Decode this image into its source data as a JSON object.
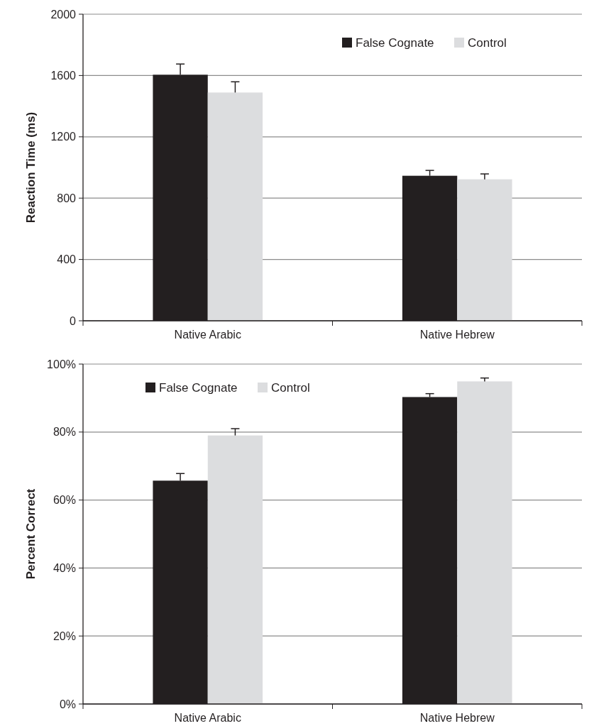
{
  "chart_data": [
    {
      "type": "bar",
      "ylabel": "Reaction Time (ms)",
      "categories": [
        "Native Arabic",
        "Native Hebrew"
      ],
      "series": [
        {
          "name": "False Cognate",
          "color": "#231f20",
          "values": [
            1605,
            946
          ],
          "errors": [
            [
              1605,
              1675
            ],
            [
              946,
              981
            ]
          ]
        },
        {
          "name": "Control",
          "color": "#dcdddf",
          "values": [
            1489,
            923
          ],
          "errors": [
            [
              1489,
              1559
            ],
            [
              923,
              958
            ]
          ]
        }
      ],
      "ylim": [
        0,
        2000
      ],
      "yticks": [
        0,
        400,
        800,
        1200,
        1600,
        2000
      ],
      "grid": "y",
      "legend": "top right"
    },
    {
      "type": "bar",
      "ylabel": "Percent Correct",
      "categories": [
        "Native Arabic",
        "Native Hebrew"
      ],
      "series": [
        {
          "name": "False Cognate",
          "color": "#231f20",
          "values": [
            65.7,
            90.3
          ],
          "errors": [
            [
              65.7,
              67.8
            ],
            [
              90.3,
              91.3
            ]
          ]
        },
        {
          "name": "Control",
          "color": "#dcdddf",
          "values": [
            79.0,
            94.9
          ],
          "errors": [
            [
              79.0,
              81.0
            ],
            [
              94.9,
              95.9
            ]
          ]
        }
      ],
      "ylim": [
        0,
        100
      ],
      "yticks": [
        {
          "value": 0,
          "label": "0%"
        },
        {
          "value": 20,
          "label": "20%"
        },
        {
          "value": 40,
          "label": "40%"
        },
        {
          "value": 60,
          "label": "60%"
        },
        {
          "value": 80,
          "label": "80%"
        },
        {
          "value": 100,
          "label": "100%"
        }
      ],
      "grid": "y",
      "legend": "top left"
    }
  ]
}
